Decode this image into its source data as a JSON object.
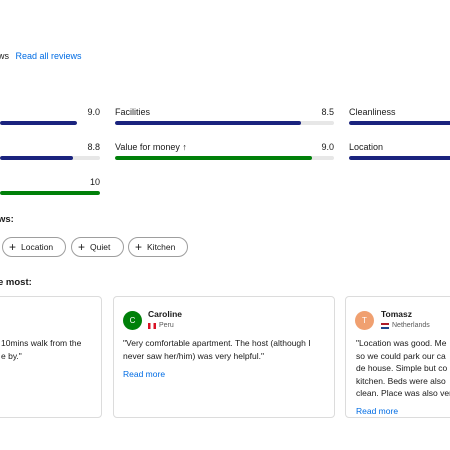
{
  "header": {
    "reviews_tail": "ws",
    "read_all": "Read all reviews"
  },
  "categories": [
    {
      "label": "",
      "score": "9.0",
      "fraction": 0.9,
      "color": "blue"
    },
    {
      "label": "Facilities",
      "score": "8.5",
      "fraction": 0.85,
      "color": "blue"
    },
    {
      "label": "Cleanliness",
      "score": "",
      "fraction": 0.9,
      "color": "blue"
    },
    {
      "label": "",
      "score": "8.8",
      "fraction": 0.88,
      "color": "blue"
    },
    {
      "label": "Value for money",
      "score": "9.0",
      "fraction": 0.9,
      "color": "green"
    },
    {
      "label": "Location",
      "score": "",
      "fraction": 0.9,
      "color": "blue"
    },
    {
      "label": "",
      "score": "10",
      "fraction": 1.0,
      "color": "green"
    }
  ],
  "value_arrow": "↑",
  "topics": {
    "title": "ws:",
    "chips": [
      "Location",
      "Quiet",
      "Kitchen"
    ]
  },
  "liked": {
    "title": "e most:"
  },
  "reviews": [
    {
      "name": "",
      "country": "",
      "text_lines": [
        "10mins walk from the",
        "e by.\""
      ],
      "read_more": ""
    },
    {
      "initial": "C",
      "name": "Caroline",
      "country": "Peru",
      "avatar_color": "#008009",
      "text_lines": [
        "\"Very comfortable apartment. The host (although I",
        "never saw her/him) was very helpful.\""
      ],
      "read_more": "Read more"
    },
    {
      "initial": "T",
      "name": "Tomasz",
      "country": "Netherlands",
      "avatar_color": "#f0a070",
      "text_lines": [
        "\"Location was good. Me",
        "so we could park our ca",
        "de house. Simple but co",
        "kitchen. Beds were also",
        "clean. Place was also ver"
      ],
      "read_more": "Read more"
    }
  ]
}
